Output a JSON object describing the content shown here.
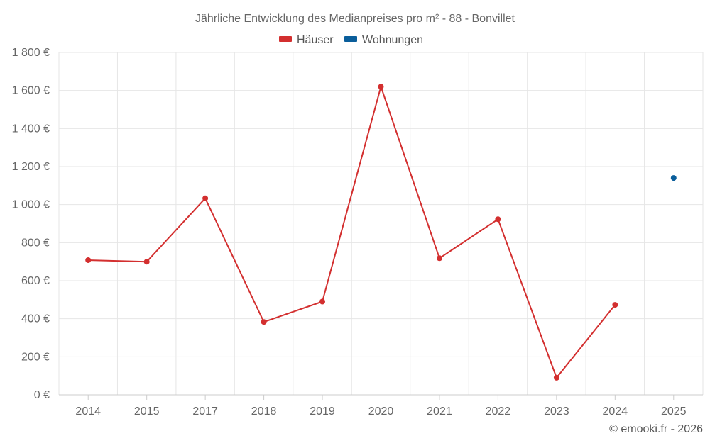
{
  "chart_data": {
    "type": "line",
    "title": "Jährliche Entwicklung des Medianpreises pro m² - 88 - Bonvillet",
    "categories": [
      "2014",
      "2015",
      "2017",
      "2018",
      "2019",
      "2020",
      "2021",
      "2022",
      "2023",
      "2024",
      "2025"
    ],
    "series": [
      {
        "name": "Häuser",
        "color": "#d32f2f",
        "values": [
          708,
          700,
          1033,
          383,
          490,
          1620,
          718,
          923,
          90,
          473,
          null
        ]
      },
      {
        "name": "Wohnungen",
        "color": "#0a5e9b",
        "values": [
          null,
          null,
          null,
          null,
          null,
          null,
          null,
          null,
          null,
          null,
          1140
        ]
      }
    ],
    "ylim": [
      0,
      1800
    ],
    "yticks": [
      0,
      200,
      400,
      600,
      800,
      1000,
      1200,
      1400,
      1600,
      1800
    ],
    "ytick_labels": [
      "0 €",
      "200 €",
      "400 €",
      "600 €",
      "800 €",
      "1 000 €",
      "1 200 €",
      "1 400 €",
      "1 600 €",
      "1 800 €"
    ],
    "grid": true,
    "legend_position": "top-center",
    "xlabel": "",
    "ylabel": ""
  },
  "credit": "© emooki.fr - 2026"
}
